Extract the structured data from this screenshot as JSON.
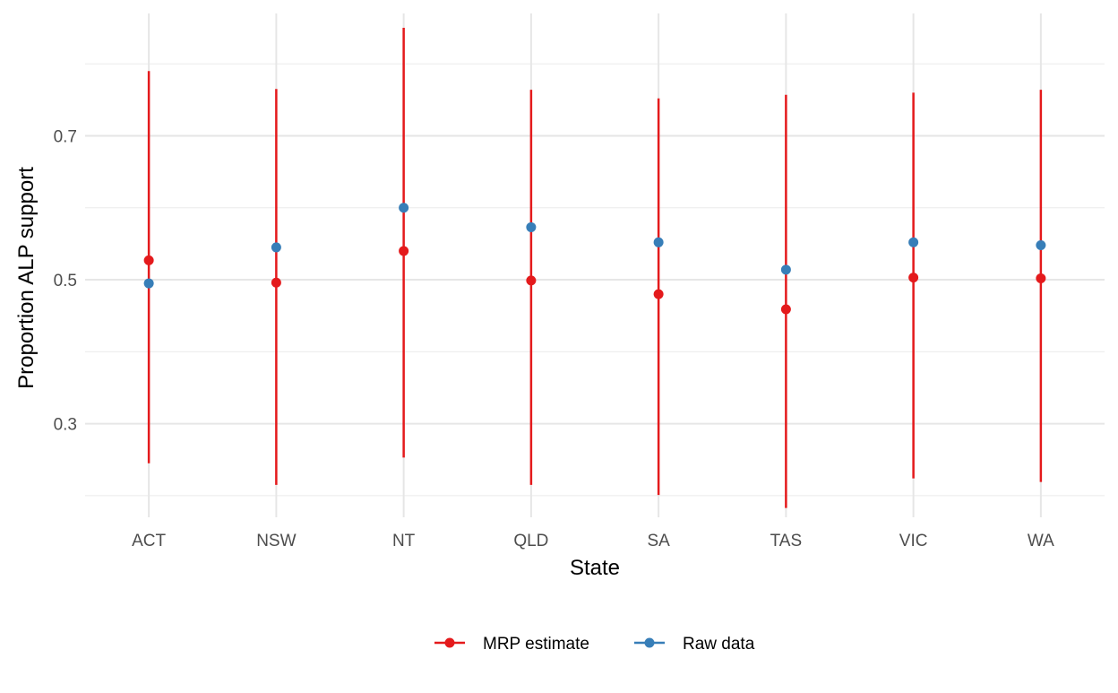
{
  "chart_data": {
    "type": "scatter",
    "xlabel": "State",
    "ylabel": "Proportion ALP support",
    "categories": [
      "ACT",
      "NSW",
      "NT",
      "QLD",
      "SA",
      "TAS",
      "VIC",
      "WA"
    ],
    "ylim": [
      0.17,
      0.87
    ],
    "yticks": [
      0.3,
      0.5,
      0.7
    ],
    "ytick_labels": [
      "0.3",
      "0.5",
      "0.7"
    ],
    "grid": true,
    "legend_position": "bottom",
    "series": [
      {
        "name": "MRP estimate",
        "color": "#E41A1C",
        "values": [
          0.527,
          0.496,
          0.54,
          0.499,
          0.48,
          0.459,
          0.503,
          0.502
        ],
        "lower": [
          0.245,
          0.215,
          0.253,
          0.215,
          0.201,
          0.183,
          0.224,
          0.219
        ],
        "upper": [
          0.79,
          0.765,
          0.85,
          0.764,
          0.752,
          0.757,
          0.76,
          0.764
        ]
      },
      {
        "name": "Raw data",
        "color": "#377EB8",
        "values": [
          0.495,
          0.545,
          0.6,
          0.573,
          0.552,
          0.514,
          0.552,
          0.548
        ]
      }
    ]
  }
}
